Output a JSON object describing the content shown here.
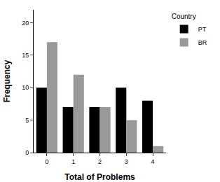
{
  "chart_data": {
    "type": "bar",
    "x_label": "Total of Problems",
    "y_label": "Frequency",
    "legend_title": "Country",
    "categories": [
      "0",
      "1",
      "2",
      "3",
      "4"
    ],
    "series": [
      {
        "name": "PT",
        "color": "#000000",
        "values": [
          10,
          7,
          7,
          10,
          8
        ]
      },
      {
        "name": "BR",
        "color": "#999999",
        "values": [
          17,
          12,
          7,
          5,
          1
        ]
      }
    ],
    "ylim": [
      0,
      22
    ],
    "yticks": [
      0,
      5,
      10,
      15,
      20
    ],
    "grid": false,
    "legend": "top right"
  }
}
